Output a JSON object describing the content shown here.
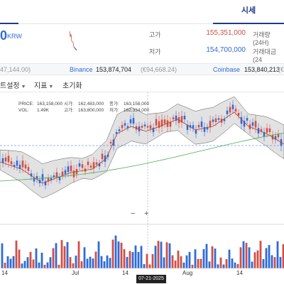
{
  "tabs": {
    "left_tab": "",
    "quote_tab": "시세"
  },
  "header": {
    "price": "0",
    "unit": "KRW",
    "high_label": "고가",
    "high_value": "155,351,000",
    "low_label": "저가",
    "low_value": "154,700,000",
    "volume_label": "거래량(24H)",
    "amount_label": "거래대금(24"
  },
  "exchanges": {
    "left_price": "47,144.00)",
    "binance_name": "Binance",
    "binance_price": "153,874,704",
    "binance_sub": "(€94,668.24)",
    "coinbase_name": "Coinbase",
    "coinbase_price": "153,840,213",
    "coinbase_sub": "(€94,6"
  },
  "toolbar": {
    "chart_settings": "트설정",
    "indicators": "지표",
    "reset": "초기화"
  },
  "ohlc": {
    "price_label": "PRICE:",
    "price_value": "163,158,000",
    "open_label": "시가:",
    "open_value": "162,483,000",
    "close_label": "종가:",
    "close_value": "163,158,000",
    "vol_label": "VOL:",
    "vol_value": "1.49K",
    "high_label": "고가:",
    "high_value": "163,800,000",
    "low_label": "저가:",
    "low_value": "162,334,000"
  },
  "xaxis": {
    "labels": [
      "14",
      "Jul",
      "14",
      "Aug",
      "14"
    ],
    "cursor_date": "07-21-2025"
  },
  "colors": {
    "up": "#d24f45",
    "down": "#2f6bd8",
    "band": "#cfcfcf",
    "ma_green": "#4caf50"
  }
}
